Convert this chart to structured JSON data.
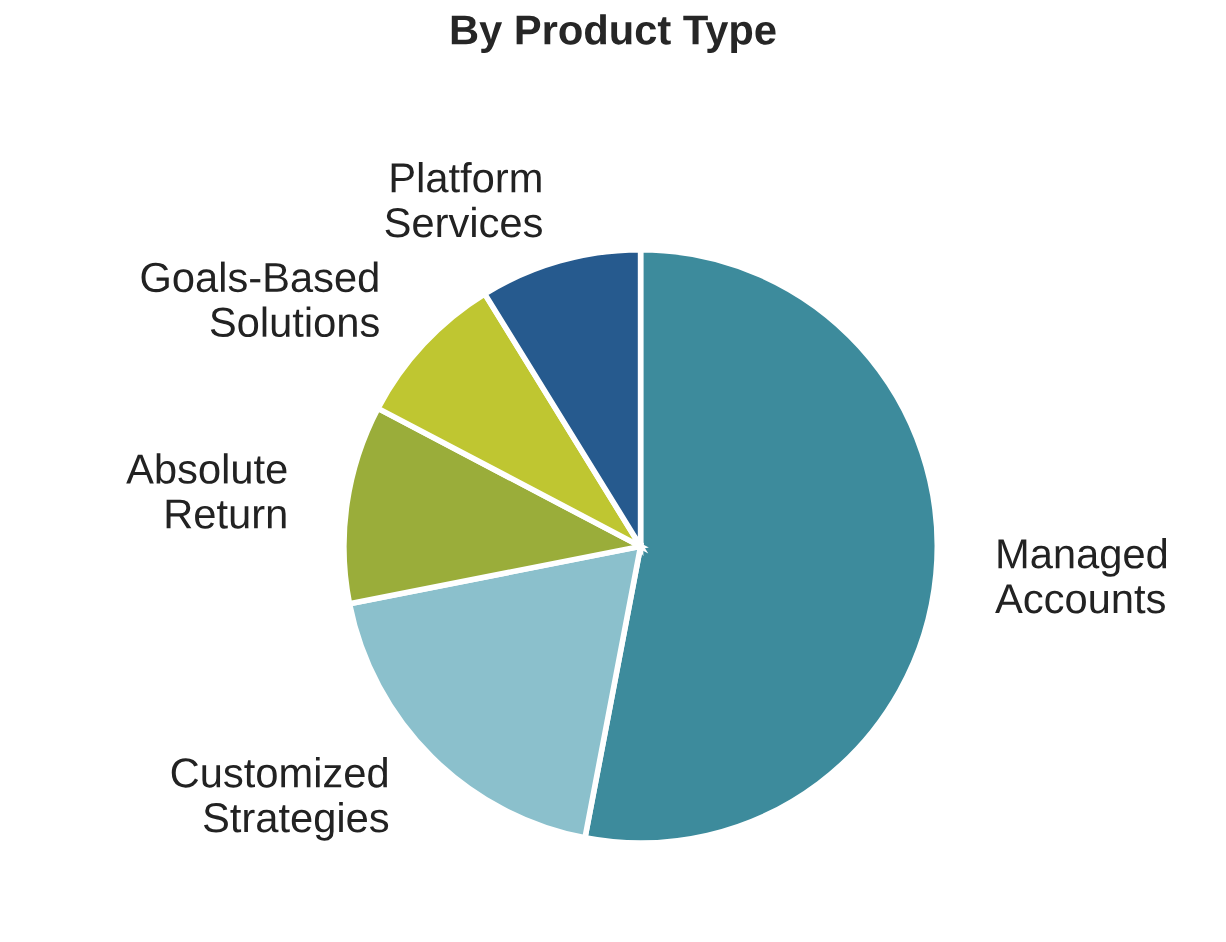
{
  "chart_data": {
    "type": "pie",
    "title": "By Product Type",
    "categories": [
      "Managed\nAccounts",
      "Customized\nStrategies",
      "Absolute\nReturn",
      "Goals-Based\nSolutions",
      "Platform\nServices"
    ],
    "values": [
      53.0,
      18.9,
      10.8,
      8.5,
      8.8
    ],
    "colors": [
      "#3d8b9c",
      "#8bc0cc",
      "#9aad3a",
      "#bfc631",
      "#265a8e"
    ]
  }
}
